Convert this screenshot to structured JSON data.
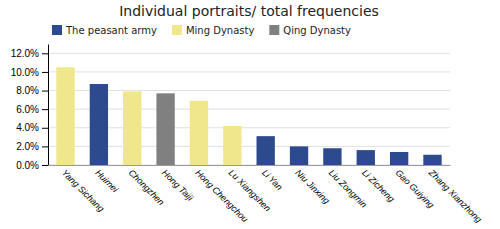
{
  "chart_data": {
    "type": "bar",
    "title": "Individual portraits/ total frequencies",
    "categories": [
      "Yang Sichang",
      "Huimei",
      "Chongzhen",
      "Hong Taiji",
      "Hong Chengchou",
      "Lu Xiangshen",
      "Li Yan",
      "Niu Jinxing",
      "Liu Zongmin",
      "Li Zicheng",
      "Gao Guiying",
      "Zhang Xianzhong"
    ],
    "series": [
      {
        "name": "The peasant army",
        "color": "#2E4A8E",
        "values": [
          null,
          0.087,
          null,
          null,
          null,
          null,
          0.031,
          0.02,
          0.018,
          0.016,
          0.014,
          0.011
        ]
      },
      {
        "name": "Ming Dynasty",
        "color": "#F0E68C",
        "values": [
          0.105,
          null,
          0.079,
          null,
          0.069,
          0.042,
          null,
          null,
          null,
          null,
          null,
          null
        ]
      },
      {
        "name": "Qing Dynasty",
        "color": "#808080",
        "values": [
          null,
          null,
          null,
          0.077,
          null,
          null,
          null,
          null,
          null,
          null,
          null,
          null
        ]
      }
    ],
    "stacked": true,
    "ylim": [
      0,
      0.13
    ],
    "yticks": [
      {
        "value": 0.0,
        "label": "0.0%"
      },
      {
        "value": 0.02,
        "label": "2.0%"
      },
      {
        "value": 0.04,
        "label": "4.0%"
      },
      {
        "value": 0.06,
        "label": "6.0%"
      },
      {
        "value": 0.08,
        "label": "8.0%"
      },
      {
        "value": 0.1,
        "label": "10.0%"
      },
      {
        "value": 0.12,
        "label": "12.0%"
      }
    ],
    "grid": true,
    "legend": "top-left"
  }
}
